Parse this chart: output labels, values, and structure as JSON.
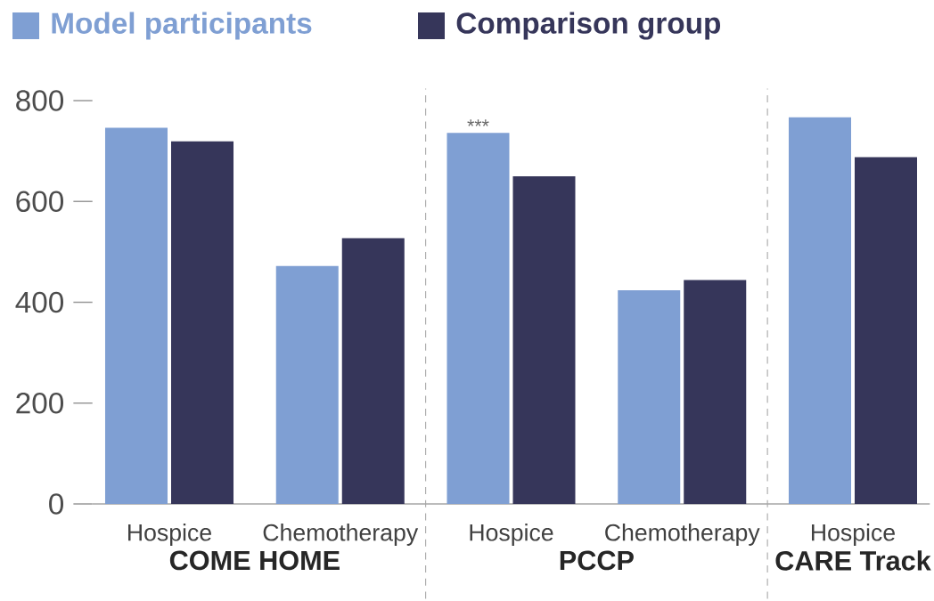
{
  "chart_data": {
    "type": "bar",
    "categories": [
      "Hospice",
      "Chemotherapy",
      "Hospice",
      "Chemotherapy",
      "Hospice"
    ],
    "series": [
      {
        "name": "Model participants",
        "color": "#7f9fd3",
        "values": [
          746,
          472,
          736,
          424,
          767
        ]
      },
      {
        "name": "Comparison group",
        "color": "#36365a",
        "values": [
          719,
          527,
          650,
          444,
          688
        ]
      }
    ],
    "ylim": [
      0,
      800
    ],
    "yticks": [
      0,
      200,
      400,
      600,
      800
    ],
    "annotations": [
      "***",
      "COME HOME",
      "PCCP",
      "CARE Track"
    ],
    "legend": "top left"
  }
}
